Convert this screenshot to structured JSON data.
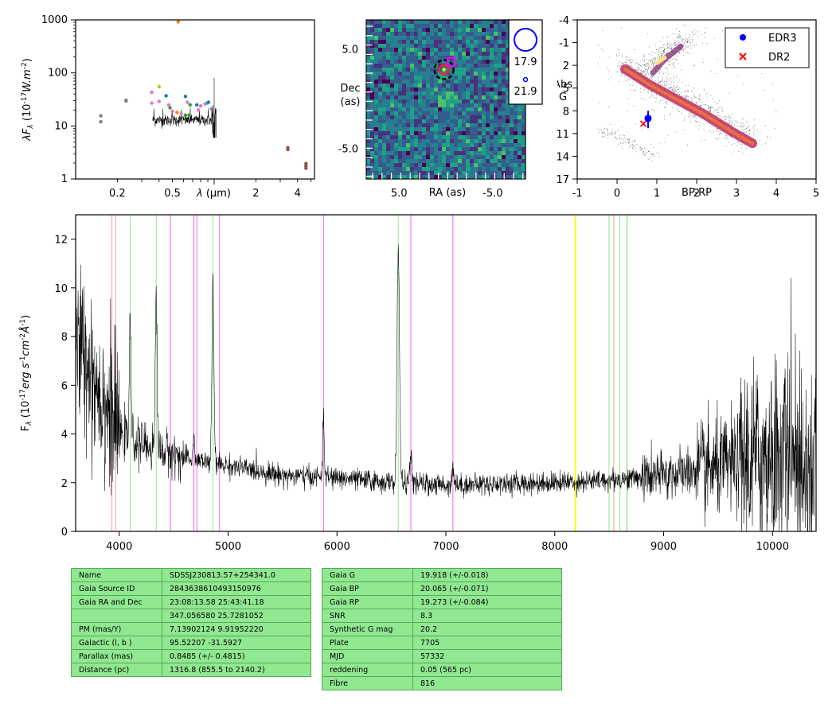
{
  "chart_data": [
    {
      "type": "scatter",
      "panel": "sed",
      "ylabel": "λF_λ (10^-17 W.m^-2)",
      "ylabel_parts": {
        "a": "λF",
        "b": "λ",
        "c": " (10",
        "d": "-17",
        "e": "W.m",
        "f": "-2",
        "g": ")"
      },
      "xlabel": "λ (μm)",
      "xlabel_parts": {
        "a": "λ",
        "b": " (μm)"
      },
      "xscale": "log",
      "yscale": "log",
      "xlim": [
        0.1,
        5.3
      ],
      "ylim": [
        1,
        1000
      ],
      "xticks": [
        {
          "v": 0.2,
          "l": "0.2"
        },
        {
          "v": 0.5,
          "l": "0.5"
        },
        {
          "v": 2,
          "l": "2"
        },
        {
          "v": 4,
          "l": "4"
        }
      ],
      "yticks": [
        {
          "v": 1,
          "l": "1"
        },
        {
          "v": 10,
          "l": "10"
        },
        {
          "v": 100,
          "l": "100"
        },
        {
          "v": 1000,
          "l": "1000"
        }
      ],
      "points": [
        {
          "x": 0.152,
          "y": 15.5,
          "color": "#7f7f7f"
        },
        {
          "x": 0.152,
          "y": 12.0,
          "color": "#7f7f7f"
        },
        {
          "x": 0.231,
          "y": 30.5,
          "color": "#7f7f7f"
        },
        {
          "x": 0.231,
          "y": 29.5,
          "color": "#7f7f7f"
        },
        {
          "x": 0.355,
          "y": 43.0,
          "color": "#e377c2"
        },
        {
          "x": 0.355,
          "y": 27.0,
          "color": "#e377c2"
        },
        {
          "x": 0.4,
          "y": 55.0,
          "color": "#bcbd22"
        },
        {
          "x": 0.4,
          "y": 29.0,
          "color": "#e377c2"
        },
        {
          "x": 0.45,
          "y": 37.0,
          "color": "#1f77b4"
        },
        {
          "x": 0.47,
          "y": 25.0,
          "color": "#e377c2"
        },
        {
          "x": 0.48,
          "y": 22.0,
          "color": "#2ca02c"
        },
        {
          "x": 0.5,
          "y": 19.0,
          "color": "#e377c2"
        },
        {
          "x": 0.54,
          "y": 18.0,
          "color": "#ff7f0e"
        },
        {
          "x": 0.58,
          "y": 17.0,
          "color": "#e377c2"
        },
        {
          "x": 0.62,
          "y": 36.0,
          "color": "#1f77b4"
        },
        {
          "x": 0.62,
          "y": 16.0,
          "color": "#2ca02c"
        },
        {
          "x": 0.64,
          "y": 28.0,
          "color": "#e377c2"
        },
        {
          "x": 0.66,
          "y": 16.0,
          "color": "#2ca02c"
        },
        {
          "x": 0.67,
          "y": 25.0,
          "color": "#2ca02c"
        },
        {
          "x": 0.75,
          "y": 25.0,
          "color": "#1f77b4"
        },
        {
          "x": 0.77,
          "y": 20.0,
          "color": "#e377c2"
        },
        {
          "x": 0.8,
          "y": 24.0,
          "color": "#e377c2"
        },
        {
          "x": 0.86,
          "y": 26.0,
          "color": "#e377c2"
        },
        {
          "x": 0.89,
          "y": 27.0,
          "color": "#17becf"
        },
        {
          "x": 0.91,
          "y": 28.0,
          "color": "#1f77b4"
        },
        {
          "x": 0.96,
          "y": 21.0,
          "color": "#9467bd"
        },
        {
          "x": 3.4,
          "y": 3.9,
          "color": "#8c564b"
        },
        {
          "x": 3.4,
          "y": 3.6,
          "color": "#8c564b"
        },
        {
          "x": 4.6,
          "y": 1.95,
          "color": "#8c564b"
        },
        {
          "x": 4.6,
          "y": 1.75,
          "color": "#8c564b"
        },
        {
          "x": 4.6,
          "y": 1.6,
          "color": "#8c564b"
        },
        {
          "x": 0.55,
          "y": 920,
          "color": "#ff7f0e"
        }
      ],
      "spectrum_overlay": {
        "x": [
          0.36,
          1.04
        ],
        "level": 13,
        "color": "#000000"
      }
    },
    {
      "type": "heatmap",
      "panel": "image",
      "xlabel": "RA (as)",
      "ylabel": "Dec (as)",
      "ylabel_lines": [
        "Dec",
        "(as)"
      ],
      "xlim": [
        8.5,
        -8.5
      ],
      "ylim": [
        -8.0,
        8.0
      ],
      "xticks": [
        {
          "v": 5.0,
          "l": "5.0"
        },
        {
          "v": -5.0,
          "l": "-5.0"
        }
      ],
      "yticks": [
        {
          "v": 5.0,
          "l": "5.0"
        },
        {
          "v": -5.0,
          "l": "-5.0"
        }
      ],
      "colormap": "viridis",
      "legend": [
        {
          "label": "17.9",
          "marker": "large-circle"
        },
        {
          "label": "21.9",
          "marker": "small-circle"
        }
      ],
      "markers": [
        {
          "kind": "dashed-circle",
          "x": 0.2,
          "y": 3.0,
          "color": "#000000"
        },
        {
          "kind": "circle",
          "x": 0.2,
          "y": 3.0,
          "color": "#ff2020"
        },
        {
          "kind": "square",
          "x": -0.6,
          "y": 3.8,
          "color": "#ff00ff"
        },
        {
          "kind": "dot",
          "x": 0.2,
          "y": 3.0,
          "color": "#ffff00"
        }
      ]
    },
    {
      "type": "scatter",
      "panel": "hrd",
      "xlabel": "BP-RP",
      "ylabel": "Abs G",
      "ylabel_lines": [
        "Abs",
        "G"
      ],
      "xlim": [
        -1,
        5
      ],
      "ylim": [
        17,
        -4
      ],
      "xticks": [
        {
          "v": -1,
          "l": "-1"
        },
        {
          "v": 0,
          "l": "0"
        },
        {
          "v": 1,
          "l": "1"
        },
        {
          "v": 2,
          "l": "2"
        },
        {
          "v": 3,
          "l": "3"
        },
        {
          "v": 4,
          "l": "4"
        },
        {
          "v": 5,
          "l": "5"
        }
      ],
      "yticks": [
        {
          "v": -4,
          "l": "-4"
        },
        {
          "v": -1,
          "l": "-1"
        },
        {
          "v": 2,
          "l": "2"
        },
        {
          "v": 5,
          "l": "5"
        },
        {
          "v": 8,
          "l": "8"
        },
        {
          "v": 11,
          "l": "11"
        },
        {
          "v": 14,
          "l": "14"
        },
        {
          "v": 17,
          "l": "17"
        }
      ],
      "legend": [
        {
          "label": "EDR3",
          "color": "#0000ff",
          "marker": "circle"
        },
        {
          "label": "DR2",
          "color": "#ff0000",
          "marker": "x"
        }
      ],
      "series": [
        {
          "name": "EDR3",
          "x": 0.78,
          "y": 9.0,
          "yerr": [
            8.0,
            10.3
          ],
          "color": "#0000ff"
        },
        {
          "name": "DR2",
          "x": 0.66,
          "y": 9.7,
          "color": "#ff0000"
        }
      ],
      "density": "background field stars (Gaia HR diagram)"
    },
    {
      "type": "line",
      "panel": "spectrum",
      "ylabel": "F_λ (10^-17 erg s^-1 cm^-2 Å^-1)",
      "ylabel_parts": {
        "a": "F",
        "b": "λ",
        "c": " (10",
        "d": "-17",
        "e": "erg s",
        "f": "-1",
        "g": "cm",
        "h": "-2",
        "i": "Å",
        "j": "-1",
        "k": ")"
      },
      "xlim": [
        3600,
        10400
      ],
      "ylim": [
        0,
        13
      ],
      "xticks": [
        {
          "v": 4000,
          "l": "4000"
        },
        {
          "v": 5000,
          "l": "5000"
        },
        {
          "v": 6000,
          "l": "6000"
        },
        {
          "v": 7000,
          "l": "7000"
        },
        {
          "v": 8000,
          "l": "8000"
        },
        {
          "v": 9000,
          "l": "9000"
        },
        {
          "v": 10000,
          "l": "10000"
        }
      ],
      "yticks": [
        {
          "v": 0,
          "l": "0"
        },
        {
          "v": 2,
          "l": "2"
        },
        {
          "v": 4,
          "l": "4"
        },
        {
          "v": 6,
          "l": "6"
        },
        {
          "v": 8,
          "l": "8"
        },
        {
          "v": 10,
          "l": "10"
        },
        {
          "v": 12,
          "l": "12"
        }
      ],
      "continuum": [
        [
          3600,
          8.0
        ],
        [
          3800,
          6.0
        ],
        [
          4000,
          4.0
        ],
        [
          4200,
          3.6
        ],
        [
          4400,
          3.3
        ],
        [
          4600,
          3.0
        ],
        [
          5000,
          2.7
        ],
        [
          5500,
          2.3
        ],
        [
          6000,
          2.2
        ],
        [
          6500,
          2.0
        ],
        [
          7000,
          1.9
        ],
        [
          8000,
          2.0
        ],
        [
          8500,
          2.1
        ],
        [
          9000,
          2.3
        ],
        [
          9500,
          2.6
        ],
        [
          10000,
          3.2
        ],
        [
          10400,
          3.0
        ]
      ],
      "emission_lines": [
        {
          "x": 4101,
          "peak": 8.5,
          "w": 8
        },
        {
          "x": 4340,
          "peak": 10.0,
          "w": 8
        },
        {
          "x": 4686,
          "peak": 3.8,
          "w": 8
        },
        {
          "x": 4861,
          "peak": 10.3,
          "w": 9
        },
        {
          "x": 5876,
          "peak": 4.5,
          "w": 8
        },
        {
          "x": 6563,
          "peak": 11.7,
          "w": 11
        },
        {
          "x": 6678,
          "peak": 3.0,
          "w": 10
        },
        {
          "x": 7065,
          "peak": 2.6,
          "w": 10
        }
      ],
      "reference_lines": [
        {
          "x": 3933,
          "color": "#ff9999"
        },
        {
          "x": 3968,
          "color": "#ff9999"
        },
        {
          "x": 4102,
          "color": "#88ee88"
        },
        {
          "x": 4340,
          "color": "#88ee88"
        },
        {
          "x": 4471,
          "color": "#ee66ee"
        },
        {
          "x": 4686,
          "color": "#ee66ee"
        },
        {
          "x": 4713,
          "color": "#ee66ee"
        },
        {
          "x": 4861,
          "color": "#88ee88"
        },
        {
          "x": 4922,
          "color": "#ee66ee"
        },
        {
          "x": 5876,
          "color": "#ee66ee"
        },
        {
          "x": 6563,
          "color": "#88ee88"
        },
        {
          "x": 6678,
          "color": "#ee66ee"
        },
        {
          "x": 7065,
          "color": "#ee66ee"
        },
        {
          "x": 8190,
          "color": "#ffff00",
          "width": 2
        },
        {
          "x": 8498,
          "color": "#88ee88"
        },
        {
          "x": 8542,
          "color": "#ff9999"
        },
        {
          "x": 8598,
          "color": "#88ee88"
        },
        {
          "x": 8662,
          "color": "#ff9999"
        },
        {
          "x": 8665,
          "color": "#88ee88"
        }
      ]
    }
  ],
  "table_left": [
    [
      "Name",
      "SDSSJ230813.57+254341.0"
    ],
    [
      "Gaia Source ID",
      "2843638610493150976"
    ],
    [
      "Gaia RA and Dec",
      "23:08:13.58    25:43:41.18"
    ],
    [
      "",
      "347.056580    25.7281052"
    ],
    [
      "PM (mas/Y)",
      "7.13902124    9.91952220"
    ],
    [
      "Galactic (l, b )",
      "95.52207    -31.5927"
    ],
    [
      "Parallax (mas)",
      "0.8485 (+/- 0.4815)"
    ],
    [
      "Distance (pc)",
      "1316.8 (855.5 to 2140.2)"
    ]
  ],
  "table_right": [
    [
      "Gaia G",
      "19.918 (+/-0.018)"
    ],
    [
      "Gaia BP",
      "20.065 (+/-0.071)"
    ],
    [
      "Gaia RP",
      "19.273 (+/-0.084)"
    ],
    [
      "SNR",
      "8.3"
    ],
    [
      "Synthetic G mag",
      "20.2"
    ],
    [
      "Plate",
      "7705"
    ],
    [
      "MJD",
      "57332"
    ],
    [
      "reddening",
      "0.05 (565 pc)"
    ],
    [
      "Fibre",
      "816"
    ]
  ]
}
